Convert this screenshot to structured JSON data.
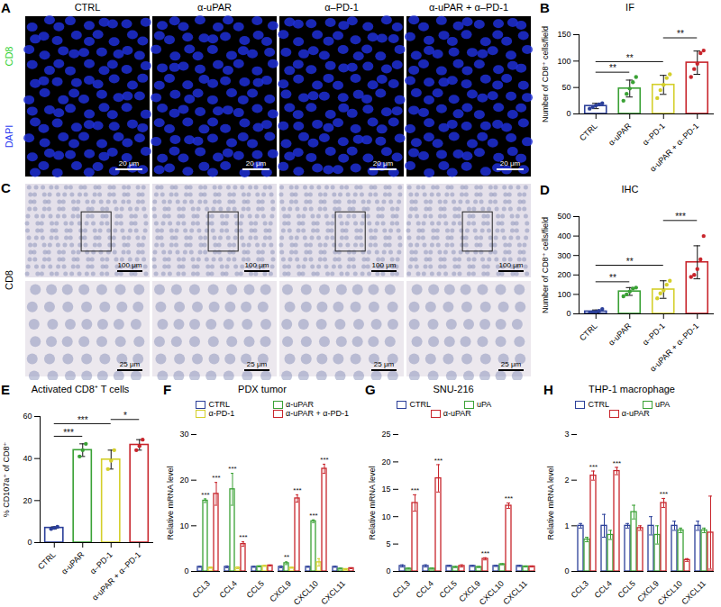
{
  "image_panels": [
    {
      "panel": "A",
      "columns": [
        "CTRL",
        "α-uPAR",
        "α–PD-1",
        "α-uPAR + α–PD-1"
      ],
      "channels": [
        {
          "name": "CD8",
          "color": "#2fd02f"
        },
        {
          "name": "DAPI",
          "color": "#2a3af0"
        }
      ],
      "scale_bars": [
        "20 μm"
      ]
    },
    {
      "panel": "C",
      "row_label": "CD8",
      "scale_bars": [
        "100 μm",
        "25 μm"
      ]
    }
  ],
  "chart_data": [
    {
      "panel": "B",
      "type": "bar",
      "title": "IF",
      "ylabel": "Number of CD8⁺ cells/field",
      "categories": [
        "CTRL",
        "α-uPAR",
        "α–PD-1",
        "α-uPAR + α–PD-1"
      ],
      "colors": [
        "#2b3f99",
        "#3aa135",
        "#d4cf2a",
        "#c8252c"
      ],
      "values": [
        15,
        48,
        55,
        97
      ],
      "errors": [
        5,
        16,
        18,
        22
      ],
      "points": [
        [
          10,
          13,
          16,
          18,
          20
        ],
        [
          25,
          38,
          48,
          60,
          70
        ],
        [
          30,
          45,
          55,
          68,
          75
        ],
        [
          70,
          85,
          95,
          115,
          120
        ]
      ],
      "ylim": [
        0,
        150
      ],
      "yticks": [
        0,
        50,
        100,
        150
      ],
      "annotations": [
        {
          "from": "CTRL",
          "to": "α-uPAR",
          "label": "**"
        },
        {
          "from": "CTRL",
          "to": "α–PD-1",
          "label": "**"
        },
        {
          "from": "α–PD-1",
          "to": "α-uPAR + α–PD-1",
          "label": "**"
        }
      ]
    },
    {
      "panel": "D",
      "type": "bar",
      "title": "IHC",
      "ylabel": "Number of CD8⁺ cells/field",
      "categories": [
        "CTRL",
        "α-uPAR",
        "α–PD-1",
        "α-uPAR + α–PD-1"
      ],
      "colors": [
        "#2b3f99",
        "#3aa135",
        "#d4cf2a",
        "#c8252c"
      ],
      "values": [
        12,
        115,
        125,
        265
      ],
      "errors": [
        8,
        20,
        45,
        85
      ],
      "points": [
        [
          3,
          8,
          10,
          15,
          25
        ],
        [
          90,
          100,
          115,
          130,
          135
        ],
        [
          80,
          105,
          120,
          150,
          170
        ],
        [
          190,
          200,
          230,
          280,
          400
        ]
      ],
      "ylim": [
        0,
        500
      ],
      "yticks": [
        0,
        100,
        200,
        300,
        400,
        500
      ],
      "annotations": [
        {
          "from": "CTRL",
          "to": "α-uPAR",
          "label": "**"
        },
        {
          "from": "CTRL",
          "to": "α–PD-1",
          "label": "**"
        },
        {
          "from": "α–PD-1",
          "to": "α-uPAR + α–PD-1",
          "label": "***"
        }
      ]
    },
    {
      "panel": "E",
      "type": "bar",
      "title": "Activated CD8⁺ T cells",
      "ylabel": "% CD107a⁺ of CD8⁺",
      "categories": [
        "CTRL",
        "α-uPAR",
        "α–PD-1",
        "α-uPAR + α–PD-1"
      ],
      "colors": [
        "#2b3f99",
        "#3aa135",
        "#d4cf2a",
        "#c8252c"
      ],
      "values": [
        7,
        44,
        39.5,
        46.5
      ],
      "errors": [
        0.5,
        3,
        4.5,
        2.5
      ],
      "points": [
        [
          6.5,
          7,
          7.5
        ],
        [
          41,
          44,
          47
        ],
        [
          35,
          39,
          44
        ],
        [
          44,
          46,
          49
        ]
      ],
      "ylim": [
        0,
        60
      ],
      "yticks": [
        0,
        20,
        40,
        60
      ],
      "annotations": [
        {
          "from": "CTRL",
          "to": "α-uPAR",
          "label": "***"
        },
        {
          "from": "CTRL",
          "to": "α–PD-1",
          "label": "***"
        },
        {
          "from": "α–PD-1",
          "to": "α-uPAR + α–PD-1",
          "label": "*"
        }
      ]
    },
    {
      "panel": "F",
      "type": "bar",
      "title": "PDX tumor",
      "ylabel": "Relative mRNA level",
      "legend": "top",
      "categories": [
        "CCL3",
        "CCL4",
        "CCL5",
        "CXCL9",
        "CXCL10",
        "CXCL11"
      ],
      "series": [
        {
          "name": "CTRL",
          "color": "#2b3f99",
          "values": [
            1,
            1,
            1,
            1,
            1,
            1
          ],
          "errors": [
            0.1,
            0.2,
            0.1,
            0.2,
            0.1,
            0.1
          ]
        },
        {
          "name": "α-uPAR",
          "color": "#3aa135",
          "values": [
            15.5,
            18,
            1.1,
            1.8,
            11,
            0.6
          ],
          "errors": [
            0.4,
            3.5,
            0.1,
            0.3,
            0.3,
            0.1
          ]
        },
        {
          "name": "α-PD-1",
          "color": "#d4cf2a",
          "values": [
            0.8,
            0.8,
            1.2,
            0.8,
            2,
            0.5
          ],
          "errors": [
            0.1,
            0.2,
            0.1,
            0.1,
            0.8,
            0.1
          ]
        },
        {
          "name": "α-uPAR + α-PD-1",
          "color": "#c8252c",
          "values": [
            17,
            6,
            1.3,
            16,
            22.5,
            0.7
          ],
          "errors": [
            2.5,
            0.5,
            0.1,
            0.8,
            1,
            0.1
          ]
        }
      ],
      "ylim": [
        0,
        30
      ],
      "yticks": [
        0,
        10,
        20,
        30
      ],
      "annotations": [
        {
          "category": "CCL3",
          "series": "α-uPAR",
          "label": "***"
        },
        {
          "category": "CCL3",
          "series": "α-uPAR + α-PD-1",
          "label": "***"
        },
        {
          "category": "CCL4",
          "series": "α-uPAR",
          "label": "***"
        },
        {
          "category": "CCL4",
          "series": "α-uPAR + α-PD-1",
          "label": "***"
        },
        {
          "category": "CXCL9",
          "series": "α-uPAR",
          "label": "**"
        },
        {
          "category": "CXCL9",
          "series": "α-uPAR + α-PD-1",
          "label": "***"
        },
        {
          "category": "CXCL10",
          "series": "α-uPAR",
          "label": "***"
        },
        {
          "category": "CXCL10",
          "series": "α-uPAR + α-PD-1",
          "label": "***"
        }
      ]
    },
    {
      "panel": "G",
      "type": "bar",
      "title": "SNU-216",
      "ylabel": "Relative mRNA level",
      "legend": "top",
      "categories": [
        "CCL3",
        "CCL4",
        "CCL5",
        "CXCL9",
        "CXCL10",
        "CXCL11"
      ],
      "series": [
        {
          "name": "CTRL",
          "color": "#2b3f99",
          "values": [
            1,
            1,
            1,
            1,
            1,
            1
          ],
          "errors": [
            0.2,
            0.2,
            0.1,
            0.1,
            0.1,
            0.1
          ]
        },
        {
          "name": "uPA",
          "color": "#3aa135",
          "values": [
            0.5,
            0.5,
            0.8,
            0.8,
            1.3,
            0.9
          ],
          "errors": [
            0.1,
            0.1,
            0.1,
            0.1,
            0.1,
            0.1
          ]
        },
        {
          "name": "α-uPAR",
          "color": "#c8252c",
          "values": [
            12.5,
            17,
            1,
            2.3,
            12,
            0.9
          ],
          "errors": [
            1.5,
            2.5,
            0.2,
            0.2,
            0.5,
            0.1
          ]
        }
      ],
      "ylim": [
        0,
        25
      ],
      "yticks": [
        0,
        5,
        10,
        15,
        20,
        25
      ],
      "annotations": [
        {
          "category": "CCL3",
          "series": "α-uPAR",
          "label": "***"
        },
        {
          "category": "CCL4",
          "series": "α-uPAR",
          "label": "***"
        },
        {
          "category": "CXCL9",
          "series": "α-uPAR",
          "label": "***"
        },
        {
          "category": "CXCL10",
          "series": "α-uPAR",
          "label": "***"
        }
      ]
    },
    {
      "panel": "H",
      "type": "bar",
      "title": "THP-1 macrophage",
      "ylabel": "Relative mRNA level",
      "legend": "top",
      "categories": [
        "CCL3",
        "CCL4",
        "CCL5",
        "CXCL9",
        "CXCL10",
        "CXCL11"
      ],
      "series": [
        {
          "name": "CTRL",
          "color": "#2b3f99",
          "values": [
            1,
            1,
            1,
            1,
            1,
            1
          ],
          "errors": [
            0.05,
            0.25,
            0.05,
            0.2,
            0.1,
            0.1
          ]
        },
        {
          "name": "uPA",
          "color": "#3aa135",
          "values": [
            0.7,
            0.8,
            1.3,
            0.8,
            0.9,
            0.9
          ],
          "errors": [
            0.05,
            0.1,
            0.15,
            0.2,
            0.05,
            0.05
          ]
        },
        {
          "name": "α-uPAR",
          "color": "#c8252c",
          "values": [
            2.1,
            2.2,
            0.95,
            1.5,
            0.25,
            0.85
          ],
          "errors": [
            0.1,
            0.08,
            0.05,
            0.1,
            0.03,
            0.8
          ]
        }
      ],
      "ylim": [
        0,
        3
      ],
      "yticks": [
        0,
        1,
        2,
        3
      ],
      "annotations": [
        {
          "category": "CCL3",
          "series": "α-uPAR",
          "label": "***"
        },
        {
          "category": "CCL4",
          "series": "α-uPAR",
          "label": "***"
        },
        {
          "category": "CXCL9",
          "series": "α-uPAR",
          "label": "***"
        }
      ]
    }
  ]
}
